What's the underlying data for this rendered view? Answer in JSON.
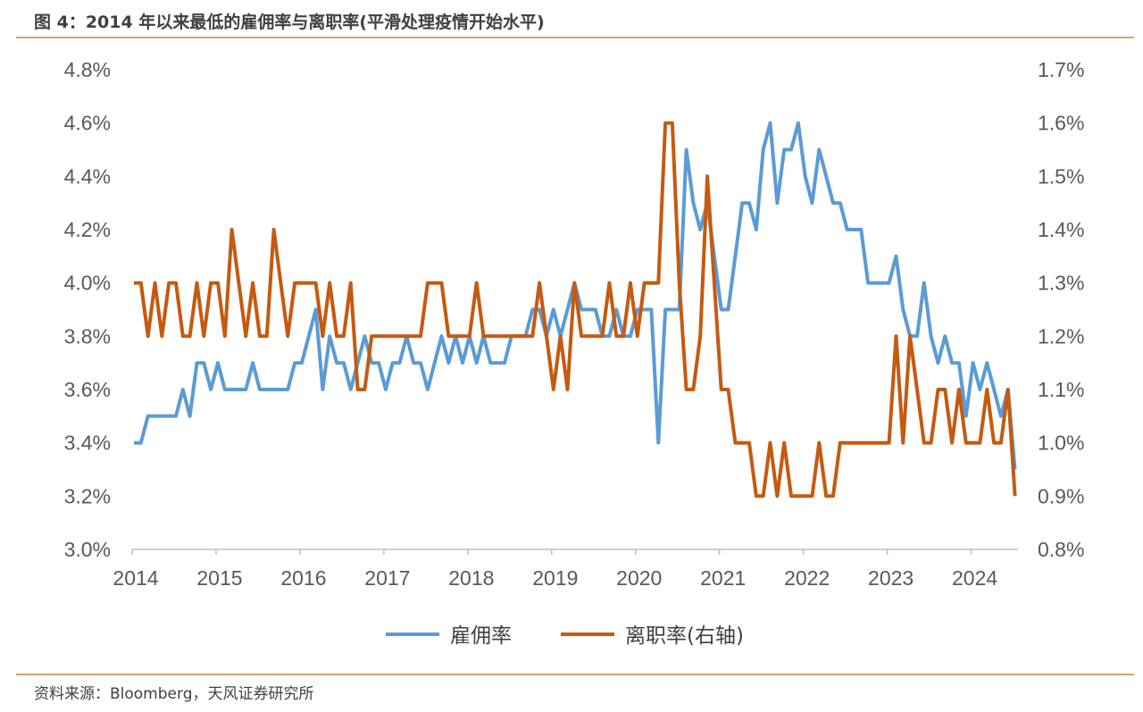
{
  "title": "图 4：2014 年以来最低的雇佣率与离职率(平滑处理疫情开始水平)",
  "source": "资料来源：Bloomberg，天风证券研究所",
  "chart_data": {
    "type": "line",
    "x_start": "2014-01",
    "frequency": "monthly",
    "x_ticks": [
      "2014",
      "2015",
      "2016",
      "2017",
      "2018",
      "2019",
      "2020",
      "2021",
      "2022",
      "2023",
      "2024"
    ],
    "y_left": {
      "ylim": [
        3.0,
        4.8
      ],
      "ticks": [
        "3.0%",
        "3.2%",
        "3.4%",
        "3.6%",
        "3.8%",
        "4.0%",
        "4.2%",
        "4.4%",
        "4.6%",
        "4.8%"
      ]
    },
    "y_right": {
      "ylim": [
        0.8,
        1.7
      ],
      "ticks": [
        "0.8%",
        "0.9%",
        "1.0%",
        "1.1%",
        "1.2%",
        "1.3%",
        "1.4%",
        "1.5%",
        "1.6%",
        "1.7%"
      ]
    },
    "grid": false,
    "legend": "bottom",
    "series": [
      {
        "name": "雇佣率",
        "axis": "left",
        "color": "#5b9bd5",
        "values": [
          3.4,
          3.4,
          3.5,
          3.5,
          3.5,
          3.5,
          3.5,
          3.6,
          3.5,
          3.7,
          3.7,
          3.6,
          3.7,
          3.6,
          3.6,
          3.6,
          3.6,
          3.7,
          3.6,
          3.6,
          3.6,
          3.6,
          3.6,
          3.7,
          3.7,
          3.8,
          3.9,
          3.6,
          3.8,
          3.7,
          3.7,
          3.6,
          3.7,
          3.8,
          3.7,
          3.7,
          3.6,
          3.7,
          3.7,
          3.8,
          3.7,
          3.7,
          3.6,
          3.7,
          3.8,
          3.7,
          3.8,
          3.7,
          3.8,
          3.7,
          3.8,
          3.7,
          3.7,
          3.7,
          3.8,
          3.8,
          3.8,
          3.9,
          3.9,
          3.8,
          3.9,
          3.8,
          3.9,
          4.0,
          3.9,
          3.9,
          3.9,
          3.8,
          3.8,
          3.9,
          3.8,
          3.8,
          3.9,
          3.9,
          3.9,
          3.4,
          3.9,
          3.9,
          3.9,
          4.5,
          4.3,
          4.2,
          4.3,
          4.1,
          3.9,
          3.9,
          4.1,
          4.3,
          4.3,
          4.2,
          4.5,
          4.6,
          4.3,
          4.5,
          4.5,
          4.6,
          4.4,
          4.3,
          4.5,
          4.4,
          4.3,
          4.3,
          4.2,
          4.2,
          4.2,
          4.0,
          4.0,
          4.0,
          4.0,
          4.1,
          3.9,
          3.8,
          3.8,
          4.0,
          3.8,
          3.7,
          3.8,
          3.7,
          3.7,
          3.5,
          3.7,
          3.6,
          3.7,
          3.6,
          3.5,
          3.6,
          3.3
        ]
      },
      {
        "name": "离职率(右轴)",
        "axis": "right",
        "color": "#c55a11",
        "values": [
          1.3,
          1.3,
          1.2,
          1.3,
          1.2,
          1.3,
          1.3,
          1.2,
          1.2,
          1.3,
          1.2,
          1.3,
          1.3,
          1.2,
          1.4,
          1.3,
          1.2,
          1.3,
          1.2,
          1.2,
          1.4,
          1.3,
          1.2,
          1.3,
          1.3,
          1.3,
          1.3,
          1.2,
          1.3,
          1.2,
          1.2,
          1.3,
          1.1,
          1.1,
          1.2,
          1.2,
          1.2,
          1.2,
          1.2,
          1.2,
          1.2,
          1.2,
          1.3,
          1.3,
          1.3,
          1.2,
          1.2,
          1.2,
          1.2,
          1.3,
          1.2,
          1.2,
          1.2,
          1.2,
          1.2,
          1.2,
          1.2,
          1.2,
          1.3,
          1.2,
          1.1,
          1.2,
          1.1,
          1.3,
          1.2,
          1.2,
          1.2,
          1.2,
          1.3,
          1.2,
          1.2,
          1.3,
          1.2,
          1.3,
          1.3,
          1.3,
          1.6,
          1.6,
          1.3,
          1.1,
          1.1,
          1.2,
          1.5,
          1.3,
          1.1,
          1.1,
          1.0,
          1.0,
          1.0,
          0.9,
          0.9,
          1.0,
          0.9,
          1.0,
          0.9,
          0.9,
          0.9,
          0.9,
          1.0,
          0.9,
          0.9,
          1.0,
          1.0,
          1.0,
          1.0,
          1.0,
          1.0,
          1.0,
          1.0,
          1.2,
          1.0,
          1.2,
          1.1,
          1.0,
          1.0,
          1.1,
          1.1,
          1.0,
          1.1,
          1.0,
          1.0,
          1.0,
          1.1,
          1.0,
          1.0,
          1.1,
          0.9
        ]
      }
    ]
  }
}
